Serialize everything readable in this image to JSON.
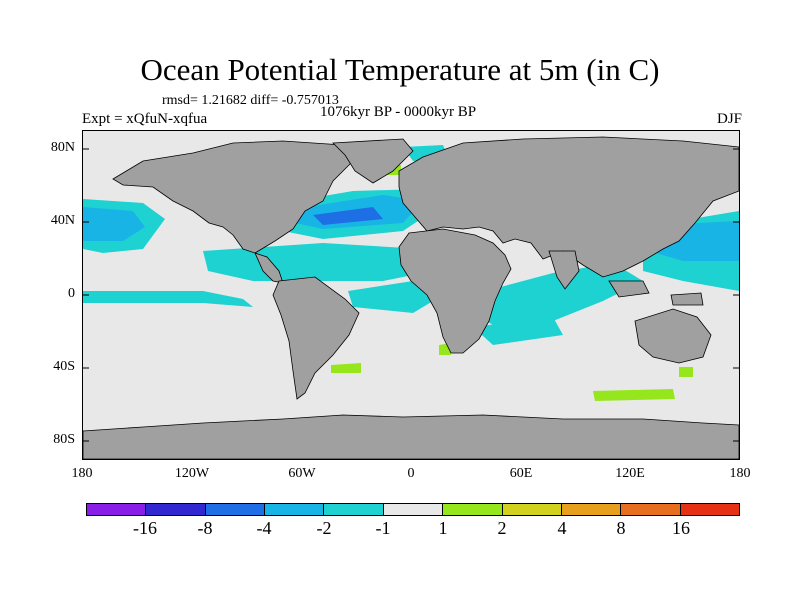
{
  "title": "Ocean Potential Temperature at 5m (in C)",
  "stats": "rmsd= 1.21682 diff= -0.757013",
  "experiment": "Expt = xQfuN-xqfua",
  "period": "1076kyr BP - 0000kyr BP",
  "season": "DJF",
  "map": {
    "land_color": "#a0a0a0",
    "ocean_neutral_color": "#e8e8e8",
    "lat_ticks": [
      "80N",
      "40N",
      "0",
      "40S",
      "80S"
    ],
    "lon_ticks": [
      "180",
      "120W",
      "60W",
      "0",
      "60E",
      "120E",
      "180"
    ]
  },
  "colorbar": {
    "labels": [
      "-16",
      "-8",
      "-4",
      "-2",
      "-1",
      "1",
      "2",
      "4",
      "8",
      "16"
    ],
    "colors": [
      "#8a1ee6",
      "#3228d2",
      "#1e6ee6",
      "#18b4e6",
      "#1ed2d2",
      "#e8e8e8",
      "#96e61e",
      "#d2d21e",
      "#e6a01e",
      "#e66e1e",
      "#e63214"
    ]
  }
}
